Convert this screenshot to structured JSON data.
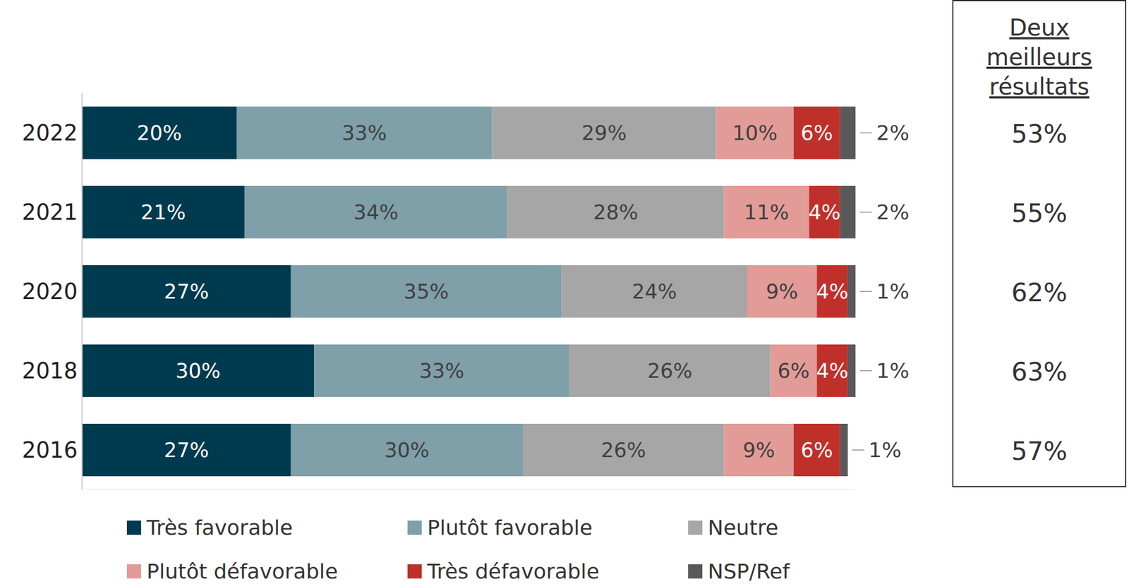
{
  "chart_data": {
    "type": "bar",
    "orientation": "horizontal",
    "stacked": true,
    "data_labels": true,
    "tick_labels": "y",
    "grid": false,
    "categories": [
      "2022",
      "2021",
      "2020",
      "2018",
      "2016"
    ],
    "xlim": [
      0,
      100
    ],
    "series": [
      {
        "name": "Très favorable",
        "color": "#003a4f",
        "values": [
          20,
          21,
          27,
          30,
          27
        ],
        "value_labels": [
          "20%",
          "21%",
          "27%",
          "30%",
          "27%"
        ]
      },
      {
        "name": "Plutôt favorable",
        "color": "#7f9fa9",
        "values": [
          33,
          34,
          35,
          33,
          30
        ],
        "value_labels": [
          "33%",
          "34%",
          "35%",
          "33%",
          "30%"
        ]
      },
      {
        "name": "Neutre",
        "color": "#a6a6a6",
        "values": [
          29,
          28,
          24,
          26,
          26
        ],
        "value_labels": [
          "29%",
          "28%",
          "24%",
          "26%",
          "26%"
        ]
      },
      {
        "name": "Plutôt défavorable",
        "color": "#e29b97",
        "values": [
          10,
          11,
          9,
          6,
          9
        ],
        "value_labels": [
          "10%",
          "11%",
          "9%",
          "6%",
          "9%"
        ]
      },
      {
        "name": "Très défavorable",
        "color": "#c0302b",
        "values": [
          6,
          4,
          4,
          4,
          6
        ],
        "value_labels": [
          "6%",
          "4%",
          "4%",
          "4%",
          "6%"
        ]
      },
      {
        "name": "NSP/Ref",
        "color": "#595959",
        "values": [
          2,
          2,
          1,
          1,
          1
        ],
        "value_labels": [
          "2%",
          "2%",
          "1%",
          "1%",
          "1%"
        ]
      }
    ],
    "top_two": {
      "title": "Deux meilleurs résultats",
      "values": [
        53,
        55,
        62,
        63,
        57
      ],
      "value_labels": [
        "53%",
        "55%",
        "62%",
        "63%",
        "57%"
      ]
    }
  }
}
